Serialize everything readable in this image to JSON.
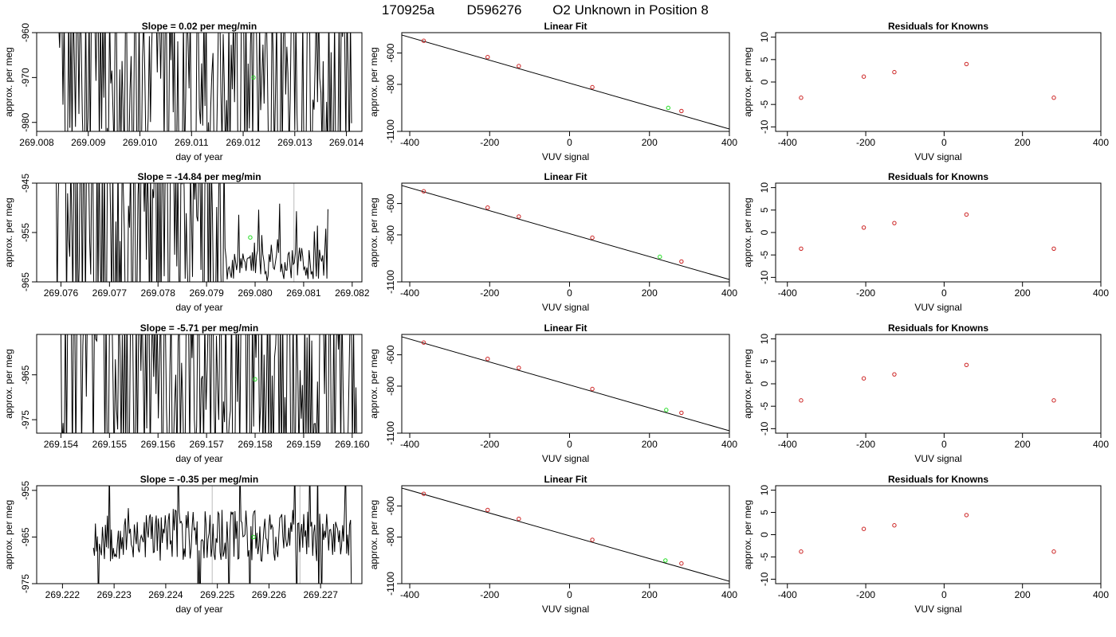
{
  "page": {
    "title_parts": [
      "170925a",
      "D596276",
      "O2 Unknown in Position  8"
    ]
  },
  "style": {
    "line_color": "#000000",
    "known_point_color": "#cc2222",
    "unknown_point_color": "#22dd22",
    "marker_line_color": "#bbbbbb"
  },
  "chart_data": [
    {
      "id": "r1-trace",
      "type": "line",
      "title": "Slope =  0.02  per meg/min",
      "xlabel": "day of year",
      "ylabel": "approx. per meg",
      "xlim": [
        269.008,
        269.0143
      ],
      "ylim": [
        -982,
        -960
      ],
      "y_reversed": true,
      "xticks": [
        "269.008",
        "269.009",
        "269.010",
        "269.011",
        "269.012",
        "269.013",
        "269.014"
      ],
      "yticks": [
        "-960",
        "-970",
        "-980"
      ],
      "trace_x_range": [
        269.0084,
        269.0141
      ],
      "trace_seed": 11,
      "trace_style": "wild",
      "unknown_point": {
        "x": 269.0122,
        "y": -970.0
      },
      "marker_lines": []
    },
    {
      "id": "r1-fit",
      "type": "scatter",
      "title": "Linear Fit",
      "xlabel": "VUV signal",
      "ylabel": "approx. per meg",
      "xlim": [
        -420,
        400
      ],
      "ylim": [
        -1100,
        -470
      ],
      "y_reversed": false,
      "xticks": [
        "-400",
        "-200",
        "0",
        "200",
        "400"
      ],
      "yticks": [
        "-600",
        "-800",
        "-1100"
      ],
      "fit_line": {
        "x": [
          -420,
          400
        ],
        "y": [
          -485,
          -1085
        ]
      },
      "known_points": {
        "x": [
          -365,
          -205,
          -127,
          57,
          280
        ],
        "y": [
          -522,
          -626,
          -683,
          -818,
          -970
        ]
      },
      "unknown_point": {
        "x": 247,
        "y": -950
      }
    },
    {
      "id": "r1-resid",
      "type": "scatter",
      "title": "Residuals for Knowns",
      "xlabel": "VUV signal",
      "ylabel": "approx. per meg",
      "xlim": [
        -430,
        400
      ],
      "ylim": [
        -11,
        11
      ],
      "y_reversed": false,
      "xticks": [
        "-400",
        "-200",
        "0",
        "200",
        "400"
      ],
      "yticks": [
        "-10",
        "-5",
        "0",
        "5",
        "10"
      ],
      "known_points": {
        "x": [
          -365,
          -205,
          -127,
          57,
          280
        ],
        "y": [
          -3.5,
          1.2,
          2.2,
          4.0,
          -3.5
        ]
      }
    },
    {
      "id": "r2-trace",
      "type": "line",
      "title": "Slope =  -14.84  per meg/min",
      "xlabel": "day of year",
      "ylabel": "approx. per meg",
      "xlim": [
        269.0755,
        269.0822
      ],
      "ylim": [
        -965,
        -945
      ],
      "y_reversed": true,
      "xticks": [
        "269.076",
        "269.077",
        "269.078",
        "269.079",
        "269.080",
        "269.081",
        "269.082"
      ],
      "yticks": [
        "-945",
        "-955",
        "-965"
      ],
      "trace_x_range": [
        269.0759,
        269.0815
      ],
      "trace_seed": 23,
      "trace_style": "wild-then-calm",
      "unknown_point": {
        "x": 269.0799,
        "y": -956.0
      },
      "marker_lines": [
        269.0808
      ]
    },
    {
      "id": "r2-fit",
      "type": "scatter",
      "title": "Linear Fit",
      "xlabel": "VUV signal",
      "ylabel": "approx. per meg",
      "xlim": [
        -420,
        400
      ],
      "ylim": [
        -1100,
        -470
      ],
      "y_reversed": false,
      "xticks": [
        "-400",
        "-200",
        "0",
        "200",
        "400"
      ],
      "yticks": [
        "-600",
        "-800",
        "-1100"
      ],
      "fit_line": {
        "x": [
          -420,
          400
        ],
        "y": [
          -485,
          -1085
        ]
      },
      "known_points": {
        "x": [
          -365,
          -205,
          -127,
          57,
          280
        ],
        "y": [
          -522,
          -626,
          -683,
          -818,
          -970
        ]
      },
      "unknown_point": {
        "x": 226,
        "y": -940
      }
    },
    {
      "id": "r2-resid",
      "type": "scatter",
      "title": "Residuals for Knowns",
      "xlabel": "VUV signal",
      "ylabel": "approx. per meg",
      "xlim": [
        -430,
        400
      ],
      "ylim": [
        -11,
        11
      ],
      "y_reversed": false,
      "xticks": [
        "-400",
        "-200",
        "0",
        "200",
        "400"
      ],
      "yticks": [
        "-10",
        "-5",
        "0",
        "5",
        "10"
      ],
      "known_points": {
        "x": [
          -365,
          -205,
          -127,
          57,
          280
        ],
        "y": [
          -3.6,
          1.1,
          2.1,
          4.0,
          -3.6
        ]
      }
    },
    {
      "id": "r3-trace",
      "type": "line",
      "title": "Slope =  -5.71  per meg/min",
      "xlabel": "day of year",
      "ylabel": "approx. per meg",
      "xlim": [
        269.1535,
        269.1602
      ],
      "ylim": [
        -978,
        -956
      ],
      "y_reversed": true,
      "xticks": [
        "269.154",
        "269.155",
        "269.156",
        "269.157",
        "269.158",
        "269.159",
        "269.160"
      ],
      "yticks": [
        "-965",
        "-975"
      ],
      "trace_x_range": [
        269.1539,
        269.1601
      ],
      "trace_seed": 37,
      "trace_style": "wild",
      "unknown_point": {
        "x": 269.158,
        "y": -966.0
      },
      "marker_lines": []
    },
    {
      "id": "r3-fit",
      "type": "scatter",
      "title": "Linear Fit",
      "xlabel": "VUV signal",
      "ylabel": "approx. per meg",
      "xlim": [
        -420,
        400
      ],
      "ylim": [
        -1100,
        -470
      ],
      "y_reversed": false,
      "xticks": [
        "-400",
        "-200",
        "0",
        "200",
        "400"
      ],
      "yticks": [
        "-600",
        "-800",
        "-1100"
      ],
      "fit_line": {
        "x": [
          -420,
          400
        ],
        "y": [
          -485,
          -1085
        ]
      },
      "known_points": {
        "x": [
          -365,
          -205,
          -127,
          57,
          280
        ],
        "y": [
          -522,
          -626,
          -683,
          -818,
          -970
        ]
      },
      "unknown_point": {
        "x": 242,
        "y": -952
      }
    },
    {
      "id": "r3-resid",
      "type": "scatter",
      "title": "Residuals for Knowns",
      "xlabel": "VUV signal",
      "ylabel": "approx. per meg",
      "xlim": [
        -430,
        400
      ],
      "ylim": [
        -11,
        11
      ],
      "y_reversed": false,
      "xticks": [
        "-400",
        "-200",
        "0",
        "200",
        "400"
      ],
      "yticks": [
        "-10",
        "-5",
        "0",
        "5",
        "10"
      ],
      "known_points": {
        "x": [
          -365,
          -205,
          -127,
          57,
          280
        ],
        "y": [
          -3.7,
          1.2,
          2.1,
          4.2,
          -3.7
        ]
      }
    },
    {
      "id": "r4-trace",
      "type": "line",
      "title": "Slope =  -0.35  per meg/min",
      "xlabel": "day of year",
      "ylabel": "approx. per meg",
      "xlim": [
        269.2215,
        269.2278
      ],
      "ylim": [
        -975,
        -954
      ],
      "y_reversed": true,
      "xticks": [
        "269.222",
        "269.223",
        "269.224",
        "269.225",
        "269.226",
        "269.227"
      ],
      "yticks": [
        "-955",
        "-965",
        "-975"
      ],
      "trace_x_range": [
        269.2226,
        269.2276
      ],
      "trace_seed": 53,
      "trace_style": "calm",
      "unknown_point": {
        "x": 269.2257,
        "y": -965.0
      },
      "marker_lines": [
        269.2249,
        269.2266
      ]
    },
    {
      "id": "r4-fit",
      "type": "scatter",
      "title": "Linear Fit",
      "xlabel": "VUV signal",
      "ylabel": "approx. per meg",
      "xlim": [
        -420,
        400
      ],
      "ylim": [
        -1100,
        -470
      ],
      "y_reversed": false,
      "xticks": [
        "-400",
        "-200",
        "0",
        "200",
        "400"
      ],
      "yticks": [
        "-600",
        "-800",
        "-1100"
      ],
      "fit_line": {
        "x": [
          -420,
          400
        ],
        "y": [
          -485,
          -1085
        ]
      },
      "known_points": {
        "x": [
          -365,
          -205,
          -127,
          57,
          280
        ],
        "y": [
          -522,
          -626,
          -683,
          -818,
          -970
        ]
      },
      "unknown_point": {
        "x": 240,
        "y": -951
      }
    },
    {
      "id": "r4-resid",
      "type": "scatter",
      "title": "Residuals for Knowns",
      "xlabel": "VUV signal",
      "ylabel": "approx. per meg",
      "xlim": [
        -430,
        400
      ],
      "ylim": [
        -11,
        11
      ],
      "y_reversed": false,
      "xticks": [
        "-400",
        "-200",
        "0",
        "200",
        "400"
      ],
      "yticks": [
        "-10",
        "-5",
        "0",
        "5",
        "10"
      ],
      "known_points": {
        "x": [
          -365,
          -205,
          -127,
          57,
          280
        ],
        "y": [
          -3.8,
          1.3,
          2.1,
          4.4,
          -3.8
        ]
      }
    }
  ]
}
